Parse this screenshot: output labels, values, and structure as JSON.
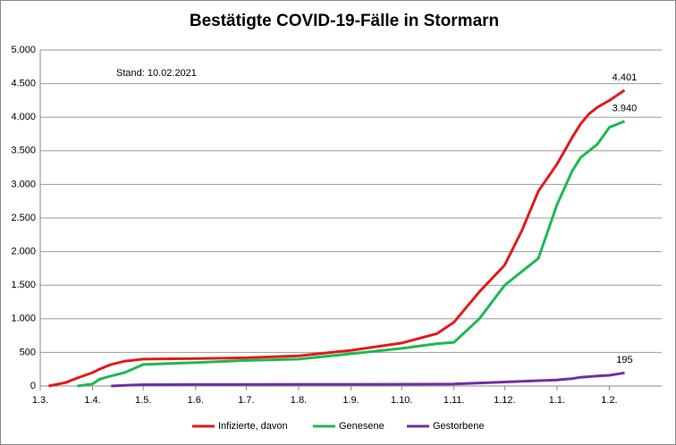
{
  "chart_data": {
    "type": "line",
    "title": "Bestätigte COVID-19-Fälle in Stormarn",
    "annotation": "Stand: 10.02.2021",
    "x": [
      0,
      5,
      15,
      22,
      31,
      35,
      42,
      50,
      61,
      92,
      122,
      153,
      184,
      214,
      235,
      245,
      260,
      275,
      285,
      295,
      306,
      315,
      320,
      325,
      330,
      337,
      346
    ],
    "xlim": [
      0,
      368
    ],
    "xticks": [
      {
        "value": 0,
        "label": "1.3."
      },
      {
        "value": 31,
        "label": "1.4."
      },
      {
        "value": 61,
        "label": "1.5."
      },
      {
        "value": 92,
        "label": "1.6."
      },
      {
        "value": 122,
        "label": "1.7."
      },
      {
        "value": 153,
        "label": "1.8."
      },
      {
        "value": 184,
        "label": "1.9."
      },
      {
        "value": 214,
        "label": "1.10."
      },
      {
        "value": 245,
        "label": "1.11."
      },
      {
        "value": 275,
        "label": "1.12."
      },
      {
        "value": 306,
        "label": "1.1."
      },
      {
        "value": 337,
        "label": "1.2."
      }
    ],
    "ylim": [
      0,
      5000
    ],
    "yticks": [
      0,
      500,
      {
        "value": 1000,
        "label": "1.000"
      },
      {
        "value": 1500,
        "label": "1.500"
      },
      {
        "value": 2000,
        "label": "2.000"
      },
      {
        "value": 2500,
        "label": "2.500"
      },
      {
        "value": 3000,
        "label": "3.000"
      },
      {
        "value": 3500,
        "label": "3.500"
      },
      {
        "value": 4000,
        "label": "4.000"
      },
      {
        "value": 4500,
        "label": "4.500"
      },
      {
        "value": 5000,
        "label": "5.000"
      }
    ],
    "grid": true,
    "legend": "bottom",
    "series": [
      {
        "name": "Infizierte, davon",
        "color": "#e31a1c",
        "values": [
          null,
          0,
          50,
          120,
          200,
          250,
          320,
          370,
          400,
          410,
          420,
          450,
          530,
          640,
          780,
          950,
          1400,
          1800,
          2300,
          2900,
          3300,
          3700,
          3900,
          4050,
          4150,
          4250,
          4401
        ],
        "value_labels": [
          null,
          null,
          null,
          null,
          null,
          null,
          null,
          null,
          null,
          null,
          null,
          null,
          null,
          null,
          null,
          null,
          null,
          null,
          null,
          null,
          null,
          null,
          null,
          null,
          null,
          null,
          "4.401"
        ]
      },
      {
        "name": "Genesene",
        "color": "#1db954",
        "values": [
          null,
          null,
          null,
          0,
          30,
          100,
          150,
          200,
          320,
          350,
          380,
          400,
          480,
          560,
          630,
          650,
          1000,
          1500,
          1700,
          1900,
          2700,
          3200,
          3400,
          3500,
          3600,
          3850,
          3940
        ],
        "value_labels": [
          null,
          null,
          null,
          null,
          null,
          null,
          null,
          null,
          null,
          null,
          null,
          null,
          null,
          null,
          null,
          null,
          null,
          null,
          null,
          null,
          null,
          null,
          null,
          null,
          null,
          null,
          "3.940"
        ]
      },
      {
        "name": "Gestorbene",
        "color": "#7030a0",
        "values": [
          null,
          null,
          null,
          null,
          null,
          null,
          0,
          10,
          20,
          22,
          24,
          25,
          25,
          26,
          28,
          30,
          45,
          60,
          70,
          80,
          90,
          110,
          130,
          140,
          150,
          160,
          195
        ],
        "value_labels": [
          null,
          null,
          null,
          null,
          null,
          null,
          null,
          null,
          null,
          null,
          null,
          null,
          null,
          null,
          null,
          null,
          null,
          null,
          null,
          null,
          null,
          null,
          null,
          null,
          null,
          null,
          "195"
        ]
      }
    ]
  }
}
